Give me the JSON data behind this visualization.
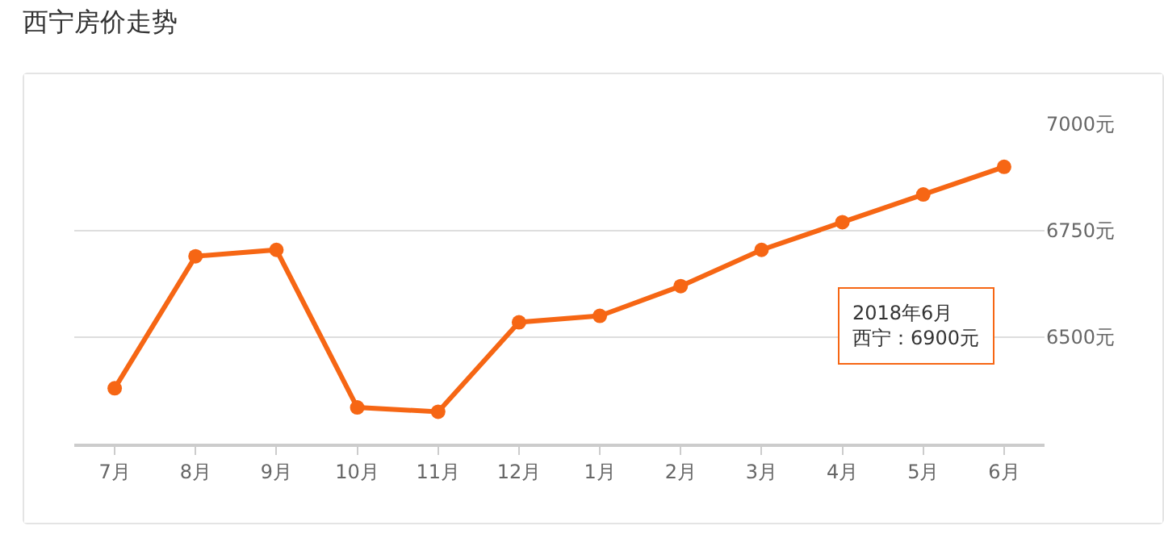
{
  "chart_data": {
    "type": "line",
    "title": "西宁房价走势",
    "categories": [
      "7月",
      "8月",
      "9月",
      "10月",
      "11月",
      "12月",
      "1月",
      "2月",
      "3月",
      "4月",
      "5月",
      "6月"
    ],
    "series": [
      {
        "color": "#f66614",
        "values": [
          6380,
          6690,
          6705,
          6335,
          6325,
          6535,
          6550,
          6620,
          6705,
          6770,
          6835,
          6900
        ]
      }
    ],
    "ylim": [
      6250,
      7000
    ],
    "yticks": [
      {
        "value": 6500,
        "label": "6500元"
      },
      {
        "value": 6750,
        "label": "6750元"
      },
      {
        "value": 7000,
        "label": "7000元"
      }
    ],
    "grid": "y",
    "marker": "circle",
    "line_style": "solid",
    "annotations": [
      "2018年6月",
      "西宁：6900元"
    ]
  }
}
